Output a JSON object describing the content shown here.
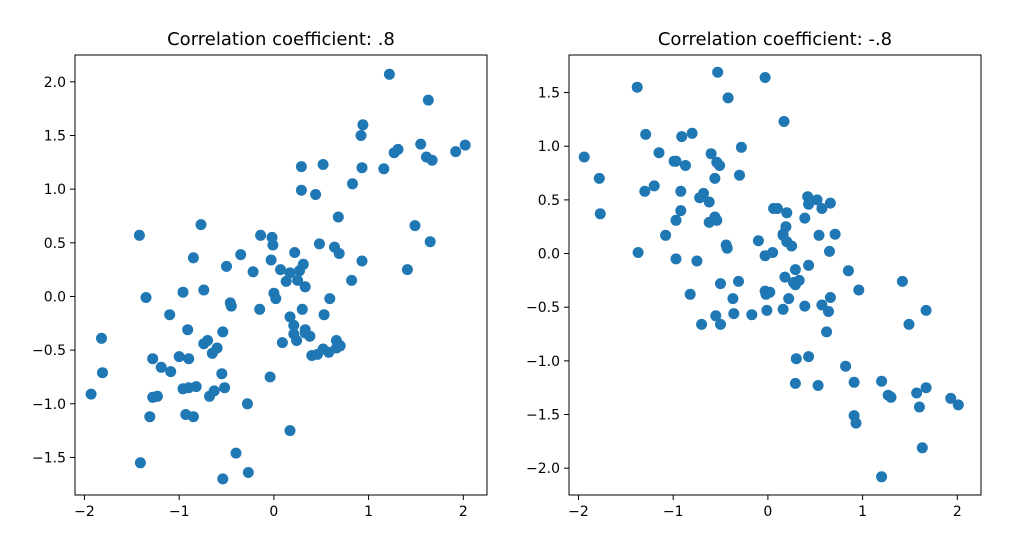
{
  "figure": {
    "background": "#ffffff",
    "marker_color": "#1f77b4"
  },
  "chart_data": [
    {
      "type": "scatter",
      "title": "Correlation coefficient: .8",
      "xlabel": "",
      "ylabel": "",
      "xlim": [
        -2.1,
        2.25
      ],
      "ylim": [
        -1.85,
        2.25
      ],
      "xticks": [
        -2,
        -1,
        0,
        1,
        2
      ],
      "yticks": [
        -1.5,
        -1.0,
        -0.5,
        0.0,
        0.5,
        1.0,
        1.5,
        2.0
      ],
      "xtick_labels": [
        "−2",
        "−1",
        "0",
        "1",
        "2"
      ],
      "ytick_labels": [
        "−1.5",
        "−1.0",
        "−0.5",
        "0.0",
        "0.5",
        "1.0",
        "1.5",
        "2.0"
      ],
      "grid": false,
      "legend": "none",
      "color": "#1f77b4",
      "x": [
        1.22,
        1.63,
        0.94,
        0.92,
        1.31,
        1.27,
        1.55,
        1.92,
        2.02,
        1.61,
        1.67,
        0.29,
        0.52,
        0.93,
        1.16,
        0.83,
        0.29,
        0.44,
        0.68,
        1.49,
        1.65,
        1.41,
        0.07,
        0.31,
        0.48,
        0.64,
        0.69,
        0.93,
        0.22,
        0.27,
        0.17,
        0.13,
        0.25,
        0.33,
        0.59,
        0.82,
        -0.02,
        -0.01,
        -0.03,
        -0.35,
        -0.14,
        -0.22,
        0.0,
        0.33,
        0.53,
        0.66,
        0.17,
        0.3,
        0.38,
        0.21,
        0.09,
        0.24,
        0.4,
        0.46,
        0.58,
        0.52,
        0.7,
        0.66,
        -0.15,
        0.02,
        0.21,
        0.33,
        -0.46,
        -0.45,
        -0.5,
        -0.77,
        -0.74,
        -0.96,
        -0.85,
        -1.1,
        -1.42,
        -1.35,
        -0.54,
        -0.6,
        -0.7,
        -0.65,
        -0.74,
        -0.91,
        -0.9,
        -1.0,
        -1.09,
        -1.19,
        -1.28,
        -1.82,
        -1.81,
        -1.93,
        -0.52,
        -0.63,
        -0.68,
        -0.9,
        -0.96,
        -0.82,
        -0.55,
        -0.85,
        -0.93,
        -1.31,
        -1.28,
        -1.23,
        -0.27,
        -0.28,
        0.17,
        -0.4,
        -1.41,
        -0.54,
        -0.04
      ],
      "y": [
        2.07,
        1.83,
        1.6,
        1.5,
        1.37,
        1.34,
        1.42,
        1.35,
        1.41,
        1.3,
        1.27,
        1.21,
        1.23,
        1.2,
        1.19,
        1.05,
        0.99,
        0.95,
        0.74,
        0.66,
        0.51,
        0.25,
        0.25,
        0.3,
        0.49,
        0.46,
        0.4,
        0.33,
        0.41,
        0.24,
        0.22,
        0.14,
        0.15,
        0.09,
        -0.02,
        0.15,
        0.55,
        0.48,
        0.34,
        0.39,
        0.57,
        0.23,
        0.03,
        -0.34,
        -0.17,
        -0.48,
        -0.19,
        -0.12,
        -0.37,
        -0.27,
        -0.43,
        -0.41,
        -0.55,
        -0.54,
        -0.52,
        -0.49,
        -0.46,
        -0.41,
        -0.12,
        -0.02,
        -0.35,
        -0.31,
        -0.06,
        -0.09,
        0.28,
        0.67,
        0.06,
        0.04,
        0.36,
        -0.17,
        0.57,
        -0.01,
        -0.33,
        -0.48,
        -0.41,
        -0.53,
        -0.44,
        -0.31,
        -0.58,
        -0.56,
        -0.7,
        -0.66,
        -0.58,
        -0.39,
        -0.71,
        -0.91,
        -0.85,
        -0.88,
        -0.93,
        -0.85,
        -0.86,
        -0.84,
        -0.72,
        -1.12,
        -1.1,
        -1.12,
        -0.94,
        -0.93,
        -1.64,
        -1.0,
        -1.25,
        -1.46,
        -1.55,
        -1.7,
        -0.75
      ]
    },
    {
      "type": "scatter",
      "title": "Correlation coefficient: -.8",
      "xlabel": "",
      "ylabel": "",
      "xlim": [
        -2.1,
        2.25
      ],
      "ylim": [
        -2.25,
        1.85
      ],
      "xticks": [
        -2,
        -1,
        0,
        1,
        2
      ],
      "yticks": [
        -2.0,
        -1.5,
        -1.0,
        -0.5,
        0.0,
        0.5,
        1.0,
        1.5
      ],
      "xtick_labels": [
        "−2",
        "−1",
        "0",
        "1",
        "2"
      ],
      "ytick_labels": [
        "−2.0",
        "−1.5",
        "−1.0",
        "−0.5",
        "0.0",
        "0.5",
        "1.0",
        "1.5"
      ],
      "grid": false,
      "legend": "none",
      "color": "#1f77b4",
      "x": [
        -0.53,
        -0.03,
        -1.38,
        -0.42,
        0.17,
        -1.29,
        -0.8,
        -0.91,
        -0.28,
        -1.94,
        -1.78,
        -1.77,
        -1.15,
        -1.3,
        -1.2,
        -0.97,
        -0.87,
        -0.99,
        -0.6,
        -0.54,
        -0.51,
        -0.56,
        -0.3,
        -0.68,
        -0.92,
        -0.72,
        -0.62,
        -0.56,
        -0.92,
        -0.97,
        -0.62,
        -0.54,
        -0.44,
        -0.43,
        -1.08,
        -0.97,
        -0.75,
        -1.37,
        -0.82,
        -0.5,
        -0.37,
        -0.31,
        -0.1,
        -0.55,
        0.06,
        0.1,
        0.2,
        0.19,
        0.16,
        0.42,
        0.43,
        0.52,
        0.57,
        0.66,
        0.71,
        0.39,
        0.16,
        0.05,
        0.2,
        0.54,
        0.65,
        0.25,
        0.43,
        0.33,
        0.29,
        0.18,
        0.22,
        0.16,
        0.02,
        -0.01,
        0.29,
        0.27,
        0.64,
        0.85,
        0.57,
        0.39,
        0.66,
        0.62,
        -0.02,
        -0.5,
        -0.17,
        -0.7,
        -0.36,
        -0.03,
        -0.03,
        0.96,
        1.42,
        1.49,
        1.67,
        0.82,
        0.91,
        1.2,
        1.27,
        1.3,
        1.6,
        1.57,
        1.67,
        1.93,
        2.01,
        0.3,
        0.29,
        0.43,
        0.53,
        0.91,
        0.93,
        1.2,
        1.63
      ],
      "y": [
        1.69,
        1.64,
        1.55,
        1.45,
        1.23,
        1.11,
        1.12,
        1.09,
        0.99,
        0.9,
        0.7,
        0.37,
        0.94,
        0.58,
        0.63,
        0.86,
        0.82,
        0.86,
        0.93,
        0.85,
        0.82,
        0.7,
        0.73,
        0.56,
        0.58,
        0.52,
        0.48,
        0.34,
        0.4,
        0.31,
        0.29,
        0.31,
        0.08,
        0.05,
        0.17,
        -0.05,
        -0.07,
        0.01,
        -0.38,
        -0.28,
        -0.42,
        -0.26,
        0.12,
        -0.58,
        0.42,
        0.42,
        0.38,
        0.25,
        0.18,
        0.53,
        0.46,
        0.5,
        0.42,
        0.47,
        0.18,
        0.33,
        0.17,
        0.01,
        0.11,
        0.17,
        0.02,
        0.07,
        -0.11,
        -0.25,
        -0.29,
        -0.22,
        -0.42,
        -0.52,
        -0.36,
        -0.53,
        -0.15,
        -0.27,
        -0.54,
        -0.16,
        -0.48,
        -0.49,
        -0.41,
        -0.73,
        -0.38,
        -0.66,
        -0.57,
        -0.66,
        -0.56,
        -0.35,
        -0.02,
        -0.34,
        -0.26,
        -0.66,
        -0.53,
        -1.05,
        -1.2,
        -1.19,
        -1.32,
        -1.34,
        -1.43,
        -1.3,
        -1.25,
        -1.35,
        -1.41,
        -0.98,
        -1.21,
        -0.96,
        -1.23,
        -1.51,
        -1.58,
        -2.08,
        -1.81
      ]
    }
  ]
}
